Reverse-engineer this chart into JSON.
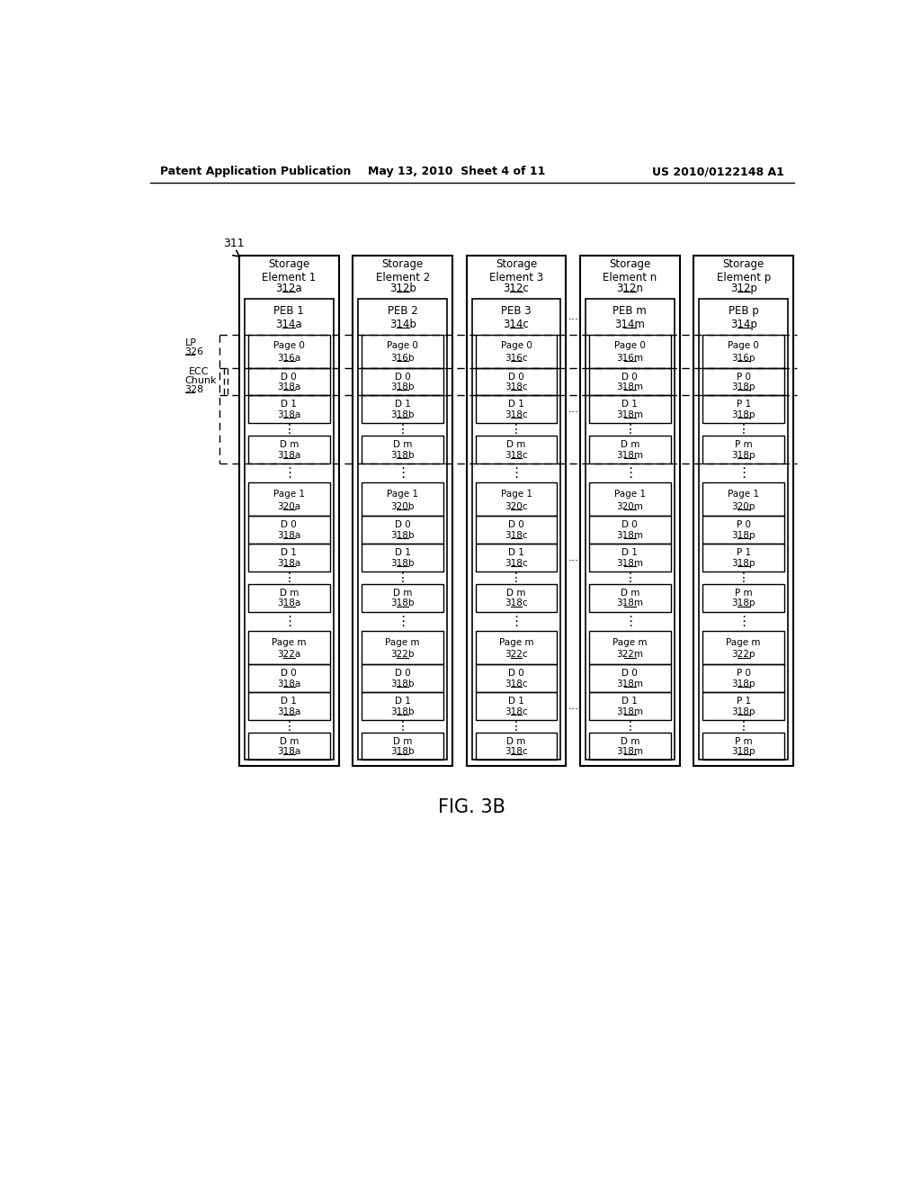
{
  "header_left": "Patent Application Publication",
  "header_mid": "May 13, 2010  Sheet 4 of 11",
  "header_right": "US 2010/0122148 A1",
  "fig_label": "FIG. 3B",
  "label_311": "311",
  "columns": [
    {
      "storage_label": "Storage\nElement 1",
      "storage_ref": "312a",
      "peb_label": "PEB 1",
      "peb_ref": "314a",
      "pages": [
        {
          "page_label": "Page 0",
          "page_ref": "316a",
          "data": [
            [
              "D 0",
              "318a"
            ],
            [
              "D 1",
              "318a"
            ],
            [
              "D m",
              "318a"
            ]
          ]
        },
        {
          "page_label": "Page 1",
          "page_ref": "320a",
          "data": [
            [
              "D 0",
              "318a"
            ],
            [
              "D 1",
              "318a"
            ],
            [
              "D m",
              "318a"
            ]
          ]
        },
        {
          "page_label": "Page m",
          "page_ref": "322a",
          "data": [
            [
              "D 0",
              "318a"
            ],
            [
              "D 1",
              "318a"
            ],
            [
              "D m",
              "318a"
            ]
          ]
        }
      ]
    },
    {
      "storage_label": "Storage\nElement 2",
      "storage_ref": "312b",
      "peb_label": "PEB 2",
      "peb_ref": "314b",
      "pages": [
        {
          "page_label": "Page 0",
          "page_ref": "316b",
          "data": [
            [
              "D 0",
              "318b"
            ],
            [
              "D 1",
              "318b"
            ],
            [
              "D m",
              "318b"
            ]
          ]
        },
        {
          "page_label": "Page 1",
          "page_ref": "320b",
          "data": [
            [
              "D 0",
              "318b"
            ],
            [
              "D 1",
              "318b"
            ],
            [
              "D m",
              "318b"
            ]
          ]
        },
        {
          "page_label": "Page m",
          "page_ref": "322b",
          "data": [
            [
              "D 0",
              "318b"
            ],
            [
              "D 1",
              "318b"
            ],
            [
              "D m",
              "318b"
            ]
          ]
        }
      ]
    },
    {
      "storage_label": "Storage\nElement 3",
      "storage_ref": "312c",
      "peb_label": "PEB 3",
      "peb_ref": "314c",
      "pages": [
        {
          "page_label": "Page 0",
          "page_ref": "316c",
          "data": [
            [
              "D 0",
              "318c"
            ],
            [
              "D 1",
              "318c"
            ],
            [
              "D m",
              "318c"
            ]
          ]
        },
        {
          "page_label": "Page 1",
          "page_ref": "320c",
          "data": [
            [
              "D 0",
              "318c"
            ],
            [
              "D 1",
              "318c"
            ],
            [
              "D m",
              "318c"
            ]
          ]
        },
        {
          "page_label": "Page m",
          "page_ref": "322c",
          "data": [
            [
              "D 0",
              "318c"
            ],
            [
              "D 1",
              "318c"
            ],
            [
              "D m",
              "318c"
            ]
          ]
        }
      ]
    },
    {
      "storage_label": "Storage\nElement n",
      "storage_ref": "312n",
      "peb_label": "PEB m",
      "peb_ref": "314m",
      "pages": [
        {
          "page_label": "Page 0",
          "page_ref": "316m",
          "data": [
            [
              "D 0",
              "318m"
            ],
            [
              "D 1",
              "318m"
            ],
            [
              "D m",
              "318m"
            ]
          ]
        },
        {
          "page_label": "Page 1",
          "page_ref": "320m",
          "data": [
            [
              "D 0",
              "318m"
            ],
            [
              "D 1",
              "318m"
            ],
            [
              "D m",
              "318m"
            ]
          ]
        },
        {
          "page_label": "Page m",
          "page_ref": "322m",
          "data": [
            [
              "D 0",
              "318m"
            ],
            [
              "D 1",
              "318m"
            ],
            [
              "D m",
              "318m"
            ]
          ]
        }
      ]
    },
    {
      "storage_label": "Storage\nElement p",
      "storage_ref": "312p",
      "peb_label": "PEB p",
      "peb_ref": "314p",
      "pages": [
        {
          "page_label": "Page 0",
          "page_ref": "316p",
          "data": [
            [
              "P 0",
              "318p"
            ],
            [
              "P 1",
              "318p"
            ],
            [
              "P m",
              "318p"
            ]
          ]
        },
        {
          "page_label": "Page 1",
          "page_ref": "320p",
          "data": [
            [
              "P 0",
              "318p"
            ],
            [
              "P 1",
              "318p"
            ],
            [
              "P m",
              "318p"
            ]
          ]
        },
        {
          "page_label": "Page m",
          "page_ref": "322p",
          "data": [
            [
              "P 0",
              "318p"
            ],
            [
              "P 1",
              "318p"
            ],
            [
              "P m",
              "318p"
            ]
          ]
        }
      ]
    }
  ],
  "bg_color": "#ffffff"
}
